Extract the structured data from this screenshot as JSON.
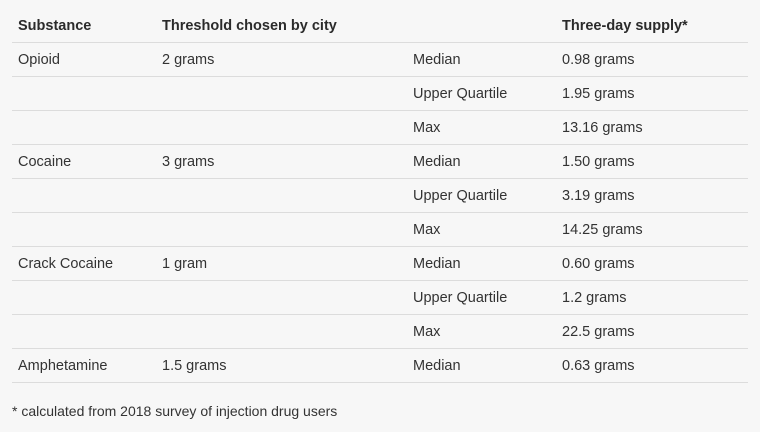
{
  "table": {
    "headers": [
      "Substance",
      "Threshold chosen by city",
      "",
      "Three-day supply*"
    ],
    "rows": [
      [
        "Opioid",
        "2 grams",
        "Median",
        "0.98 grams"
      ],
      [
        "",
        "",
        "Upper Quartile",
        "1.95 grams"
      ],
      [
        "",
        "",
        "Max",
        "13.16 grams"
      ],
      [
        "Cocaine",
        "3 grams",
        "Median",
        "1.50 grams"
      ],
      [
        "",
        "",
        "Upper Quartile",
        "3.19 grams"
      ],
      [
        "",
        "",
        "Max",
        "14.25 grams"
      ],
      [
        "Crack Cocaine",
        "1 gram",
        "Median",
        "0.60 grams"
      ],
      [
        "",
        "",
        "Upper Quartile",
        "1.2 grams"
      ],
      [
        "",
        "",
        "Max",
        "22.5 grams"
      ],
      [
        "Amphetamine",
        "1.5 grams",
        "Median",
        "0.63 grams"
      ]
    ]
  },
  "footnote": "* calculated from 2018 survey of injection drug users"
}
